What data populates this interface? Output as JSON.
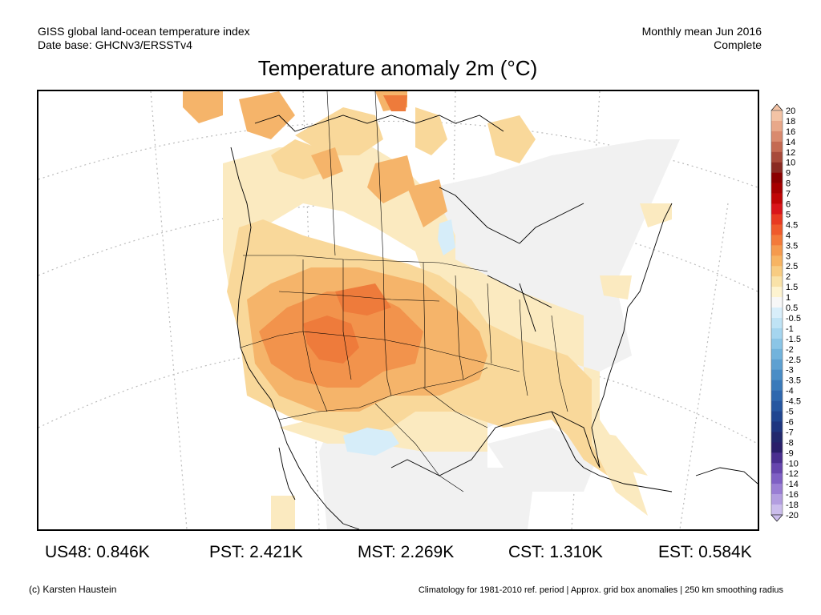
{
  "header": {
    "left_line1": "GISS global land-ocean temperature index",
    "left_line2": "Date base: GHCNv3/ERSSTv4",
    "right_line1": "Monthly mean Jun 2016",
    "right_line2": "Complete",
    "title": "Temperature anomaly 2m (°C)"
  },
  "legend": {
    "labels": [
      "20",
      "18",
      "16",
      "14",
      "12",
      "10",
      "9",
      "8",
      "7",
      "6",
      "5",
      "4.5",
      "4",
      "3.5",
      "3",
      "2.5",
      "2",
      "1.5",
      "1",
      "0.5",
      "-0.5",
      "-1",
      "-1.5",
      "-2",
      "-2.5",
      "-3",
      "-3.5",
      "-4",
      "-4.5",
      "-5",
      "-6",
      "-7",
      "-8",
      "-9",
      "-10",
      "-12",
      "-14",
      "-16",
      "-18",
      "-20"
    ],
    "colors": [
      "#f3c3a5",
      "#e8a88a",
      "#d98a6e",
      "#c46a52",
      "#a84a3a",
      "#8a2a22",
      "#8b0000",
      "#a60000",
      "#c00505",
      "#d9151a",
      "#e83a22",
      "#ef5a2c",
      "#f37a3a",
      "#f59a4e",
      "#f7b463",
      "#f8cc82",
      "#f9e2a8",
      "#fdf3d0",
      "#f7f7f7",
      "#d8eefa",
      "#bfe3f5",
      "#a5d5ef",
      "#8bc5e6",
      "#72b3dc",
      "#5ea0d1",
      "#4a8dc6",
      "#3a7aba",
      "#2e67ae",
      "#2656a0",
      "#204590",
      "#1e357f",
      "#22286d",
      "#2a1f6a",
      "#4a2f8f",
      "#6646ad",
      "#7f60c4",
      "#9a7ed4",
      "#b39ee0",
      "#cbbdec"
    ]
  },
  "stats": [
    {
      "label": "US48: 0.846K"
    },
    {
      "label": "PST: 2.421K"
    },
    {
      "label": "MST: 2.269K"
    },
    {
      "label": "CST: 1.310K"
    },
    {
      "label": "EST: 0.584K"
    }
  ],
  "footer": {
    "left": "(c) Karsten Haustein",
    "right": "Climatology for 1981-2010 ref. period | Approx. grid box anomalies | 250 km smoothing radius"
  }
}
